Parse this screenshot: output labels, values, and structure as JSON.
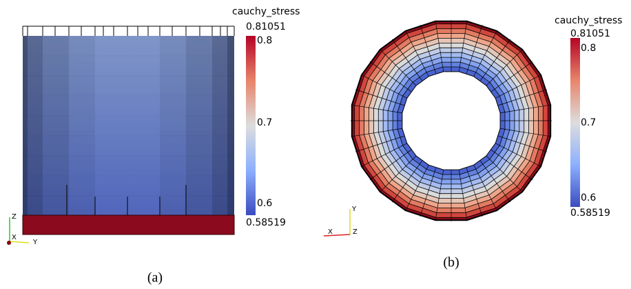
{
  "panel_a": {
    "colorbar": {
      "title": "cauchy_stress",
      "max": "0.81051",
      "min": "0.58519",
      "ticks": [
        "0.8",
        "0.7",
        "0.6"
      ]
    },
    "axes": [
      "Z",
      "X",
      "Y"
    ],
    "caption": "(a)"
  },
  "panel_b": {
    "colorbar": {
      "title": "cauchy_stress",
      "max": "0.81051",
      "min": "0.58519",
      "ticks": [
        "0.8",
        "0.7",
        "0.6"
      ]
    },
    "axes": [
      "Y",
      "X",
      "Z"
    ],
    "caption": "(b)"
  }
}
